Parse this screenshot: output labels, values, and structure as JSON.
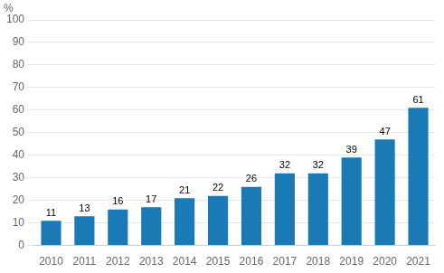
{
  "chart_data": {
    "type": "bar",
    "categories": [
      "2010",
      "2011",
      "2012",
      "2013",
      "2014",
      "2015",
      "2016",
      "2017",
      "2018",
      "2019",
      "2020",
      "2021"
    ],
    "values": [
      11,
      13,
      16,
      17,
      21,
      22,
      26,
      32,
      32,
      39,
      47,
      61
    ],
    "color": "#1a7ab5",
    "ylabel": "%",
    "ylim": [
      0,
      100
    ],
    "yticks": [
      0,
      10,
      20,
      30,
      40,
      50,
      60,
      70,
      80,
      90,
      100
    ],
    "grid": true,
    "data_labels": true
  }
}
